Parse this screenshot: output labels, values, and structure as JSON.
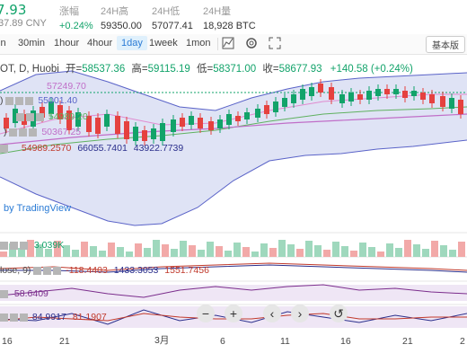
{
  "header": {
    "price": "7.93",
    "price_cny": "37.89 CNY",
    "change_label": "涨幅",
    "change_value": "+0.24%",
    "high_label": "24H高",
    "high_value": "59350.00",
    "low_label": "24H低",
    "low_value": "57077.41",
    "volume_label": "24H量",
    "volume_value": "18,928 BTC"
  },
  "toolbar": {
    "intervals": [
      "in",
      "30min",
      "1hour",
      "4hour",
      "1day",
      "1week",
      "1mon"
    ],
    "active_interval": "1day",
    "basic_label": "基本版"
  },
  "legend": {
    "symbol": "OT, D, Huobi",
    "open_label": "开=",
    "open_value": "58537.36",
    "high_label": "高=",
    "high_value": "59115.19",
    "low_label": "低=",
    "low_value": "58371.00",
    "close_label": "收=",
    "close_value": "58677.93",
    "change": "+140.58 (+0.24%)"
  },
  "indicators": {
    "ma_top_label": "57249.70",
    "ma_values_row1": "55001.40",
    "ma_values_row2": "54989.20",
    "ma_values_row3": "50367.25",
    "boll_a": "54989.2570",
    "boll_b": "66055.7401",
    "boll_c": "43922.7739",
    "tv_logo": "by TradingView",
    "volume_value": "3.039K",
    "macd_label": "lose, 9)",
    "macd_a": "-118.4403",
    "macd_b": "1433.3053",
    "macd_c": "1551.7456",
    "rsi_value": "58.6409",
    "kdj_a": "84.9917",
    "kdj_b": "81.1907"
  },
  "x_axis": {
    "labels": [
      "16",
      "21",
      "3月",
      "6",
      "11",
      "16",
      "21",
      "2"
    ]
  },
  "colors": {
    "up": "#12a36a",
    "down": "#e5413f",
    "band_fill": "#dfe3f5",
    "band_line": "#5a63c8",
    "ma_line": "#c06ec8",
    "ma_line2": "#5fb15f"
  },
  "zoom_controls": [
    "minus-icon",
    "plus-icon",
    "chevron-left-icon",
    "chevron-right-icon",
    "reset-icon"
  ]
}
